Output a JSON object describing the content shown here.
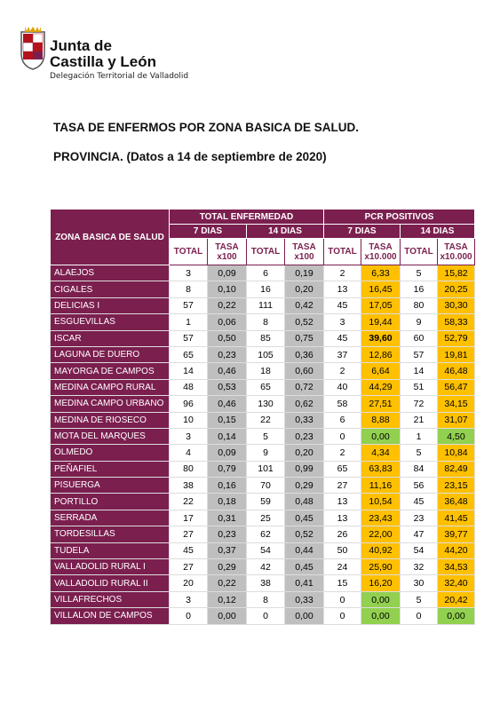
{
  "header": {
    "org_line1": "Junta de",
    "org_line2": "Castilla y León",
    "delegation": "Delegación Territorial de Valladolid"
  },
  "title": "TASA DE ENFERMOS POR ZONA BASICA DE SALUD.",
  "subtitle": "PROVINCIA. (Datos a 14 de septiembre de 2020)",
  "table": {
    "zone_header": "ZONA BASICA DE SALUD",
    "groups": [
      "TOTAL ENFERMEDAD",
      "PCR POSITIVOS"
    ],
    "periods": [
      "7 DIAS",
      "14 DIAS",
      "7 DIAS",
      "14 DIAS"
    ],
    "columns": [
      "TOTAL",
      "TASA\nx100",
      "TOTAL",
      "TASA\nx100",
      "TOTAL",
      "TASA\nx10.000",
      "TOTAL",
      "TASA\nx10.000"
    ],
    "rows": [
      [
        "ALAEJOS",
        "3",
        "0,09",
        "6",
        "0,19",
        "2",
        "6,33",
        "5",
        "15,82"
      ],
      [
        "CIGALES",
        "8",
        "0,10",
        "16",
        "0,20",
        "13",
        "16,45",
        "16",
        "20,25"
      ],
      [
        "DELICIAS I",
        "57",
        "0,22",
        "111",
        "0,42",
        "45",
        "17,05",
        "80",
        "30,30"
      ],
      [
        "ESGUEVILLAS",
        "1",
        "0,06",
        "8",
        "0,52",
        "3",
        "19,44",
        "9",
        "58,33"
      ],
      [
        "ISCAR",
        "57",
        "0,50",
        "85",
        "0,75",
        "45",
        "39,60",
        "60",
        "52,79"
      ],
      [
        "LAGUNA DE DUERO",
        "65",
        "0,23",
        "105",
        "0,36",
        "37",
        "12,86",
        "57",
        "19,81"
      ],
      [
        "MAYORGA DE CAMPOS",
        "14",
        "0,46",
        "18",
        "0,60",
        "2",
        "6,64",
        "14",
        "46,48"
      ],
      [
        "MEDINA CAMPO RURAL",
        "48",
        "0,53",
        "65",
        "0,72",
        "40",
        "44,29",
        "51",
        "56,47"
      ],
      [
        "MEDINA CAMPO URBANO",
        "96",
        "0,46",
        "130",
        "0,62",
        "58",
        "27,51",
        "72",
        "34,15"
      ],
      [
        "MEDINA DE RIOSECO",
        "10",
        "0,15",
        "22",
        "0,33",
        "6",
        "8,88",
        "21",
        "31,07"
      ],
      [
        "MOTA DEL MARQUES",
        "3",
        "0,14",
        "5",
        "0,23",
        "0",
        "0,00",
        "1",
        "4,50"
      ],
      [
        "OLMEDO",
        "4",
        "0,09",
        "9",
        "0,20",
        "2",
        "4,34",
        "5",
        "10,84"
      ],
      [
        "PEÑAFIEL",
        "80",
        "0,79",
        "101",
        "0,99",
        "65",
        "63,83",
        "84",
        "82,49"
      ],
      [
        "PISUERGA",
        "38",
        "0,16",
        "70",
        "0,29",
        "27",
        "11,16",
        "56",
        "23,15"
      ],
      [
        "PORTILLO",
        "22",
        "0,18",
        "59",
        "0,48",
        "13",
        "10,54",
        "45",
        "36,48"
      ],
      [
        "SERRADA",
        "17",
        "0,31",
        "25",
        "0,45",
        "13",
        "23,43",
        "23",
        "41,45"
      ],
      [
        "TORDESILLAS",
        "27",
        "0,23",
        "62",
        "0,52",
        "26",
        "22,00",
        "47",
        "39,77"
      ],
      [
        "TUDELA",
        "45",
        "0,37",
        "54",
        "0,44",
        "50",
        "40,92",
        "54",
        "44,20"
      ],
      [
        "VALLADOLID RURAL I",
        "27",
        "0,29",
        "42",
        "0,45",
        "24",
        "25,90",
        "32",
        "34,53"
      ],
      [
        "VALLADOLID RURAL II",
        "20",
        "0,22",
        "38",
        "0,41",
        "15",
        "16,20",
        "30",
        "32,40"
      ],
      [
        "VILLAFRECHOS",
        "3",
        "0,12",
        "8",
        "0,33",
        "0",
        "0,00",
        "5",
        "20,42"
      ],
      [
        "VILLALON DE CAMPOS",
        "0",
        "0,00",
        "0",
        "0,00",
        "0",
        "0,00",
        "0",
        "0,00"
      ]
    ]
  }
}
